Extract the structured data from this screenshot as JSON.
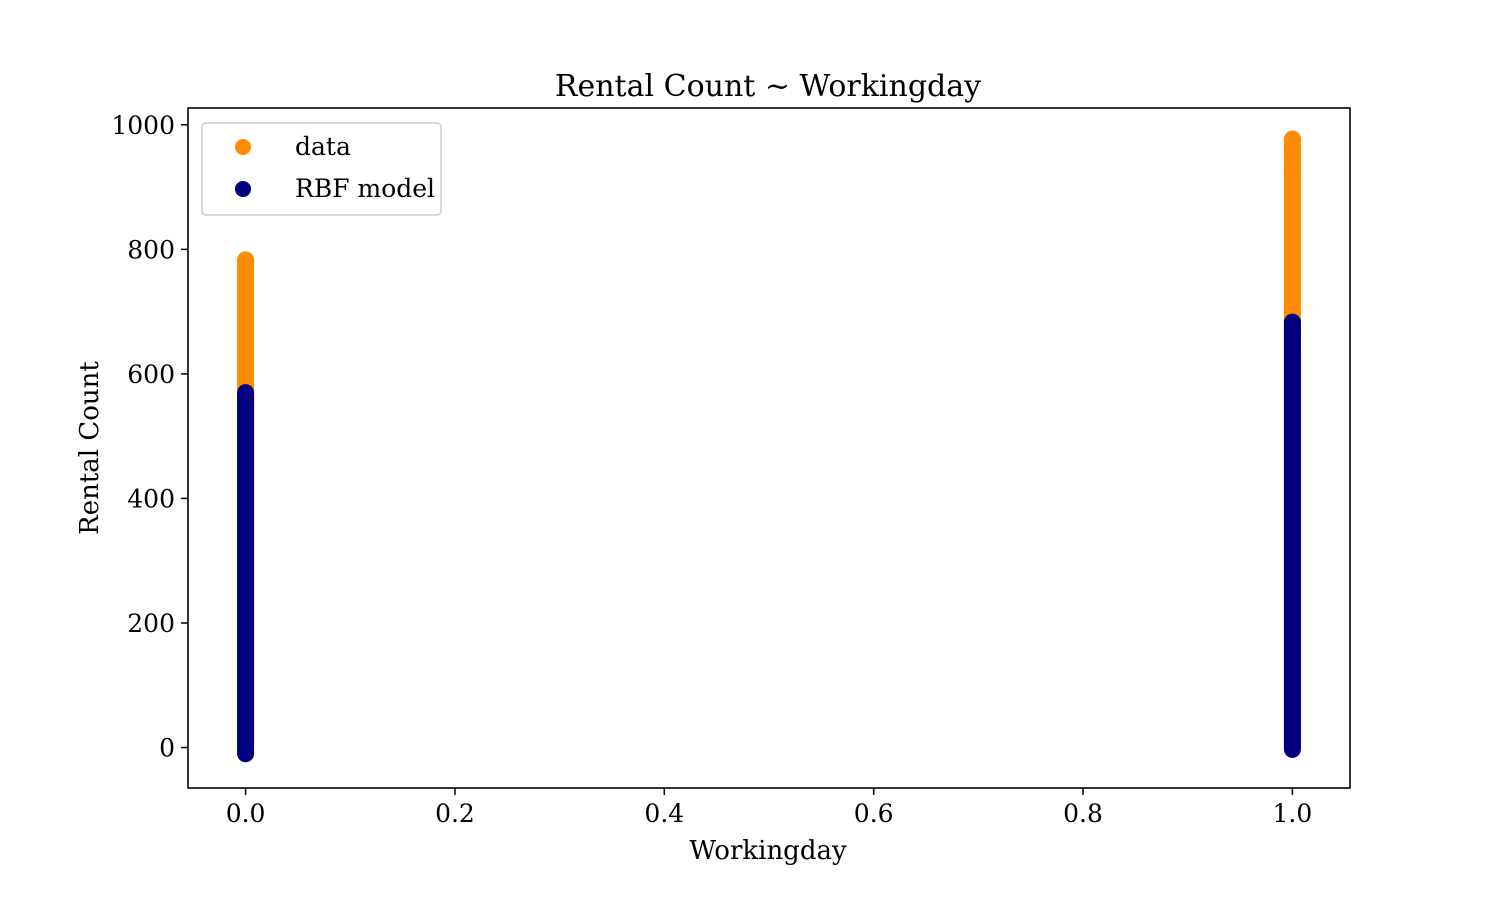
{
  "chart_data": {
    "type": "scatter",
    "title": "Rental Count ~ Workingday",
    "xlabel": "Workingday",
    "ylabel": "Rental Count",
    "xlim": [
      -0.055,
      1.055
    ],
    "ylim": [
      -65,
      1027
    ],
    "xticks": [
      0.0,
      0.2,
      0.4,
      0.6,
      0.8,
      1.0
    ],
    "xtick_labels": [
      "0.0",
      "0.2",
      "0.4",
      "0.6",
      "0.8",
      "1.0"
    ],
    "yticks": [
      0,
      200,
      400,
      600,
      800,
      1000
    ],
    "ytick_labels": [
      "0",
      "200",
      "400",
      "600",
      "800",
      "1000"
    ],
    "grid": false,
    "legend_position": "top-left",
    "series": [
      {
        "name": "data",
        "color": "#ff8c00",
        "groups": [
          {
            "x": 0,
            "y_min": 1,
            "y_max": 783,
            "outliers": [
              783,
              761,
              745
            ]
          },
          {
            "x": 1,
            "y_min": 1,
            "y_max": 977,
            "outliers": [
              977,
              962,
              945,
              925
            ]
          }
        ]
      },
      {
        "name": "RBF model",
        "color": "#000080",
        "groups": [
          {
            "x": 0,
            "y_min": -10,
            "y_max": 570,
            "outliers": []
          },
          {
            "x": 1,
            "y_min": -3,
            "y_max": 683,
            "outliers": [
              683,
              665,
              648
            ]
          }
        ]
      }
    ]
  }
}
